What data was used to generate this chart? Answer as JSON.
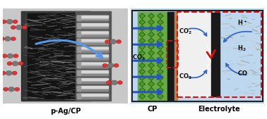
{
  "title_left": "p-Ag/CP",
  "title_cp": "CP",
  "title_electrolyte": "Electrolyte",
  "left_bg_color": "#d4d4d4",
  "right_panel_bg": "#bdd8ee",
  "border_color": "#222222",
  "cp_green_color": "#5a8a3c",
  "red_dashed_color": "#dd1111",
  "blue_arrow_color": "#3366cc",
  "label_fontsize": 6.5,
  "bold_label_fontsize": 7.0
}
